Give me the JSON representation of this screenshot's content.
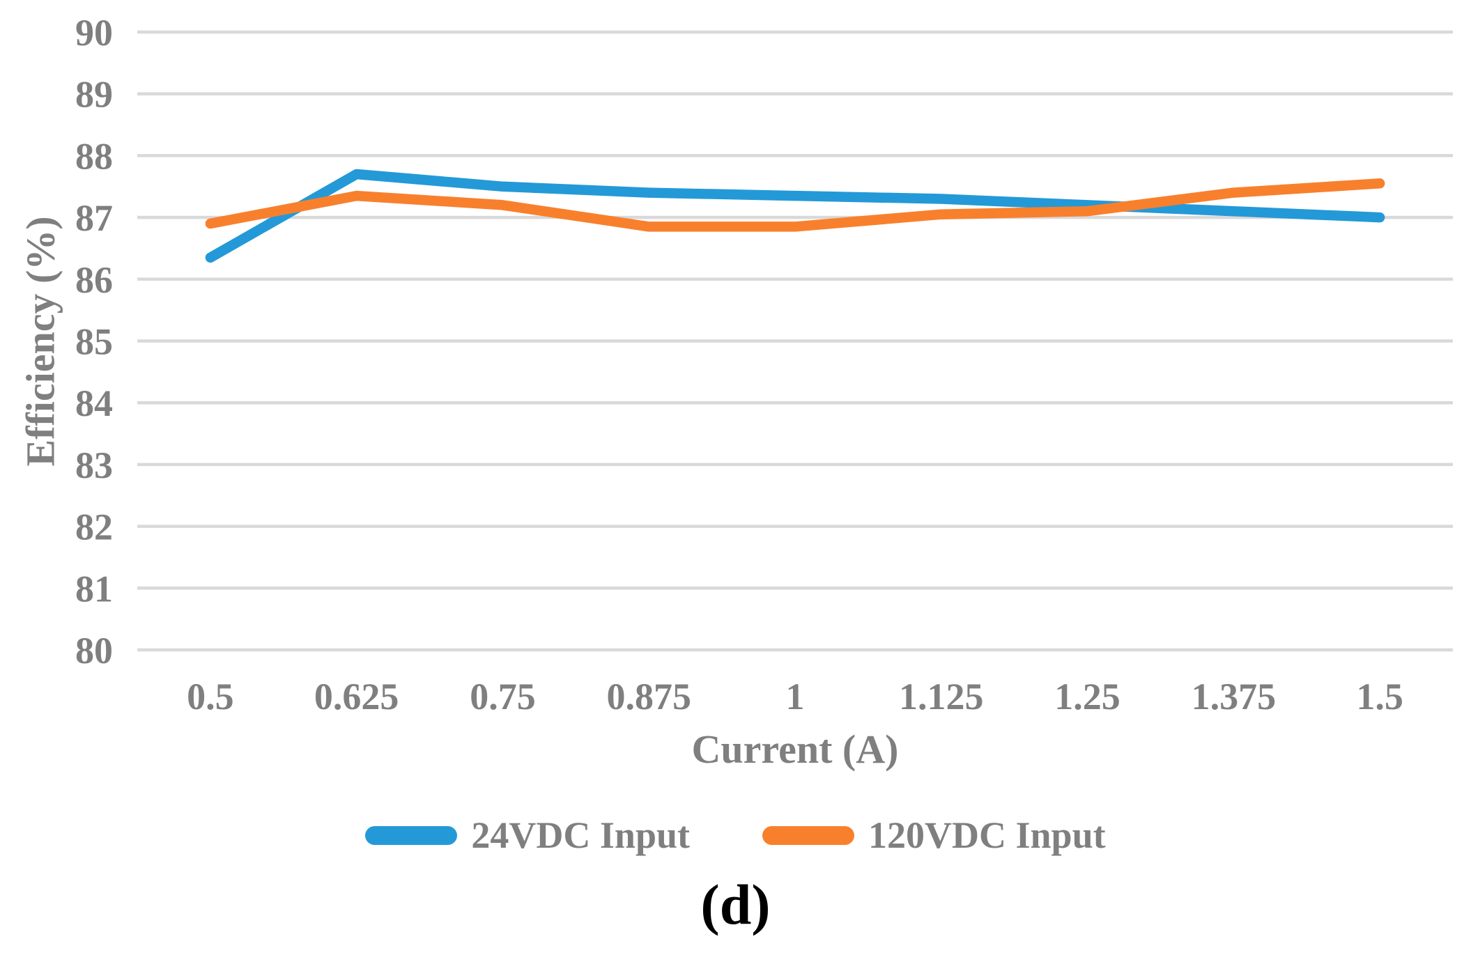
{
  "figure": {
    "caption": "(d)"
  },
  "chart_data": {
    "type": "line",
    "title": "",
    "xlabel": "Current (A)",
    "ylabel": "Efficiency (%)",
    "categories": [
      "0.5",
      "0.625",
      "0.75",
      "0.875",
      "1",
      "1.125",
      "1.25",
      "1.375",
      "1.5"
    ],
    "y_ticks": [
      80,
      81,
      82,
      83,
      84,
      85,
      86,
      87,
      88,
      89,
      90
    ],
    "ylim": [
      80,
      90
    ],
    "grid": "horizontal",
    "legend_position": "bottom",
    "series": [
      {
        "name": "24VDC Input",
        "color": "#2499D7",
        "values": [
          86.35,
          87.7,
          87.5,
          87.4,
          87.35,
          87.3,
          87.2,
          87.1,
          87.0
        ]
      },
      {
        "name": "120VDC Input",
        "color": "#F8802D",
        "values": [
          86.9,
          87.35,
          87.2,
          86.85,
          86.85,
          87.05,
          87.1,
          87.4,
          87.55
        ]
      }
    ],
    "colors": {
      "grid": "#D9D9D9",
      "axis_text": "#7F7F7F"
    }
  }
}
